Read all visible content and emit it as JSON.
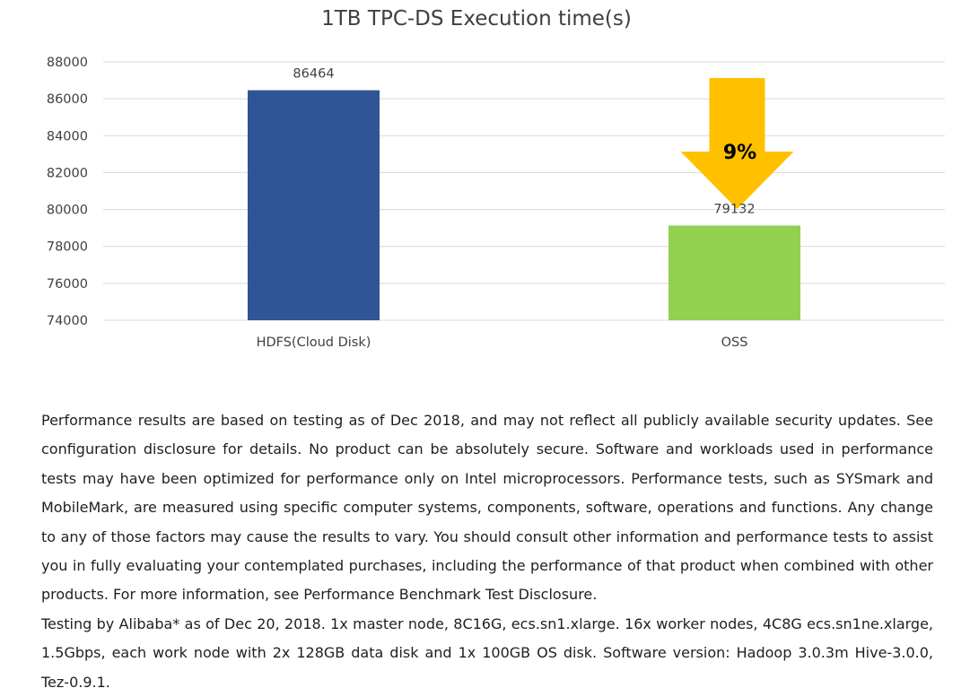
{
  "chart_data": {
    "type": "bar",
    "title": "1TB TPC-DS Execution time(s)",
    "categories": [
      "HDFS(Cloud Disk)",
      "OSS"
    ],
    "values": [
      86464,
      79132
    ],
    "data_labels": [
      "86464",
      "79132"
    ],
    "colors": [
      "#2F5597",
      "#92D050"
    ],
    "ylim": [
      74000,
      88000
    ],
    "yticks": [
      74000,
      76000,
      78000,
      80000,
      82000,
      84000,
      86000,
      88000
    ],
    "xlabel": "",
    "ylabel": "",
    "grid": true,
    "legend": "none",
    "annotation": {
      "text": "9%",
      "shape": "down-arrow",
      "color": "#FFC000",
      "target_category": "OSS"
    }
  },
  "disclaimer": {
    "paragraph1": "Performance results are based on testing as of Dec 2018, and may not reflect all publicly available security updates. See configuration disclosure for details. No product can be absolutely secure. Software and workloads used in performance tests may have been optimized for performance only on Intel microprocessors. Performance tests, such as SYSmark and MobileMark, are measured using specific computer systems, components, software, operations and functions. Any change to any of those factors may cause the results to vary. You should consult other information and performance tests to assist you in fully evaluating your contemplated purchases, including the performance of that product when combined with other products. For more information, see Performance Benchmark Test Disclosure.",
    "paragraph2": "Testing by Alibaba* as of Dec 20, 2018. 1x master node, 8C16G, ecs.sn1.xlarge. 16x worker nodes, 4C8G ecs.sn1ne.xlarge, 1.5Gbps, each work node with 2x 128GB data disk and 1x 100GB OS disk. Software version: Hadoop 3.0.3m Hive-3.0.0, Tez-0.9.1."
  }
}
